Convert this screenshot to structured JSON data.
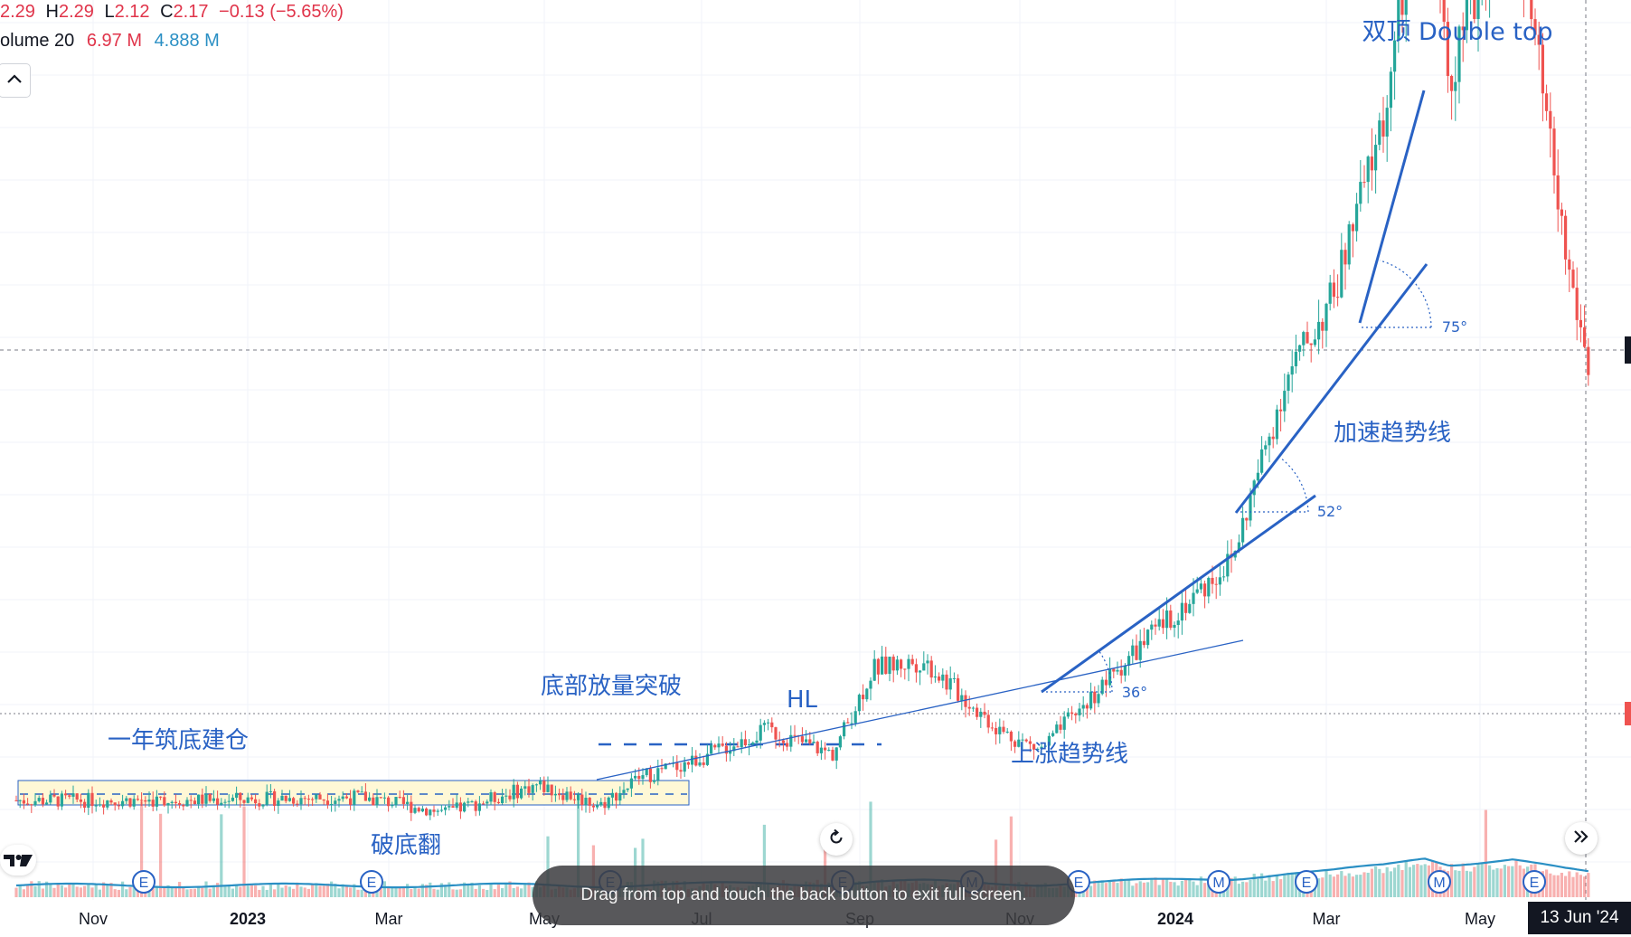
{
  "legend": {
    "open": "2.29",
    "h_label": "H",
    "high": "2.29",
    "l_label": "L",
    "low": "2.12",
    "c_label": "C",
    "close": "2.17",
    "change": "−0.13 (−5.65%)",
    "volume_label": "olume 20",
    "volume_value": "6.97 M",
    "volume_ma": "4.888 M"
  },
  "toast": {
    "message": "Drag from top and touch the back button to exit full screen."
  },
  "date_badge": "13 Jun '24",
  "icons": {
    "collapse": "chevron-up-icon",
    "reset": "rotate-icon",
    "scroll": "double-chevron-right-icon",
    "logo": "tradingview-logo"
  },
  "colors": {
    "up": "#26a69a",
    "down": "#ef5350",
    "annotation": "#2962c4",
    "volume_ma": "#2a8fc4",
    "zone_fill": "#fff8d6",
    "background": "#ffffff"
  },
  "chart_data": {
    "type": "candlestick",
    "price_scale_note": "price axis not visible in screenshot",
    "x_ticks": [
      "Nov",
      "2023",
      "Mar",
      "May",
      "Jul",
      "Sep",
      "Nov",
      "2024",
      "Mar",
      "May"
    ],
    "grid": true,
    "series": [
      {
        "name": "price",
        "approx_path": [
          [
            "2022-10-01",
            1.0
          ],
          [
            "2022-12-01",
            1.0
          ],
          [
            "2023-02-15",
            1.02
          ],
          [
            "2023-03-20",
            0.92
          ],
          [
            "2023-04-25",
            1.1
          ],
          [
            "2023-05-20",
            0.97
          ],
          [
            "2023-06-05",
            1.15
          ],
          [
            "2023-06-25",
            1.25
          ],
          [
            "2023-07-25",
            1.45
          ],
          [
            "2023-08-20",
            1.3
          ],
          [
            "2023-09-05",
            1.85
          ],
          [
            "2023-09-25",
            1.9
          ],
          [
            "2023-10-25",
            1.45
          ],
          [
            "2023-11-10",
            1.32
          ],
          [
            "2023-12-20",
            2.0
          ],
          [
            "2024-01-25",
            2.55
          ],
          [
            "2024-02-15",
            3.7
          ],
          [
            "2024-03-05",
            4.25
          ],
          [
            "2024-03-25",
            5.4
          ],
          [
            "2024-04-10",
            7.1
          ],
          [
            "2024-04-20",
            5.7
          ],
          [
            "2024-05-15",
            6.85
          ],
          [
            "2024-06-05",
            4.5
          ],
          [
            "2024-06-15",
            3.7
          ]
        ]
      }
    ],
    "annotations": [
      {
        "text": "双顶 Double top"
      },
      {
        "text": "加速趋势线"
      },
      {
        "text": "75°"
      },
      {
        "text": "52°"
      },
      {
        "text": "36°"
      },
      {
        "text": "底部放量突破"
      },
      {
        "text": "HL"
      },
      {
        "text": "一年筑底建仓"
      },
      {
        "text": "上涨趋势线"
      },
      {
        "text": "破底翻"
      }
    ],
    "events": [
      "E",
      "E",
      "E",
      "E",
      "M",
      "E",
      "M",
      "E",
      "M",
      "E"
    ]
  }
}
